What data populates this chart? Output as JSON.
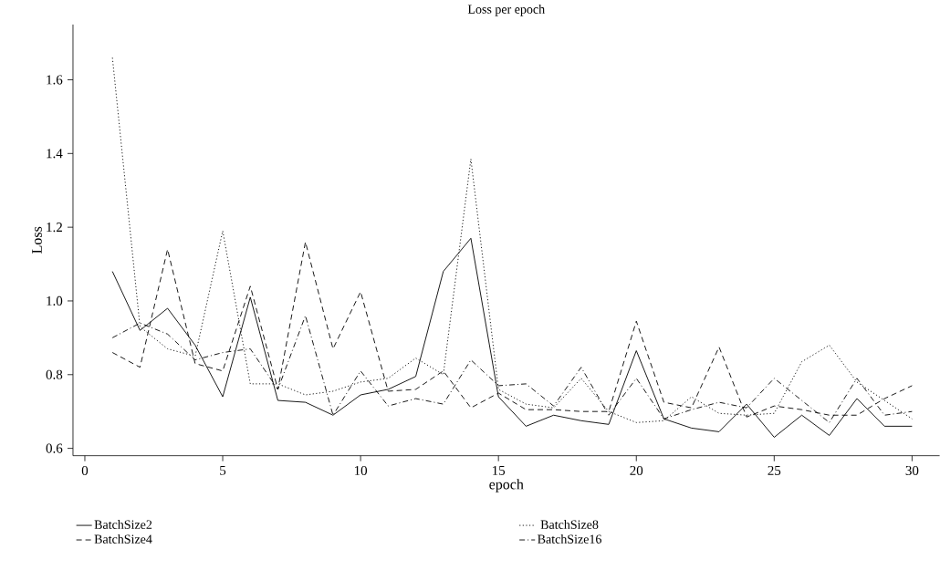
{
  "chart_data": {
    "type": "line",
    "title": "Loss per epoch",
    "xlabel": "epoch",
    "ylabel": "Loss",
    "x": [
      1,
      2,
      3,
      4,
      5,
      6,
      7,
      8,
      9,
      10,
      11,
      12,
      13,
      14,
      15,
      16,
      17,
      18,
      19,
      20,
      21,
      22,
      23,
      24,
      25,
      26,
      27,
      28,
      29,
      30
    ],
    "series": [
      {
        "name": "BatchSize2",
        "color": "#000000",
        "line_style": "solid",
        "values": [
          1.08,
          0.92,
          0.98,
          0.88,
          0.74,
          1.01,
          0.73,
          0.725,
          0.69,
          0.745,
          0.76,
          0.795,
          1.08,
          1.17,
          0.74,
          0.66,
          0.69,
          0.675,
          0.665,
          0.865,
          0.68,
          0.655,
          0.645,
          0.72,
          0.63,
          0.69,
          0.635,
          0.735,
          0.66,
          0.66
        ]
      },
      {
        "name": "BatchSize4",
        "color": "#000000",
        "line_style": "dashed",
        "values": [
          0.86,
          0.82,
          1.14,
          0.83,
          0.81,
          1.04,
          0.76,
          1.16,
          0.87,
          1.025,
          0.755,
          0.76,
          0.81,
          0.71,
          0.75,
          0.705,
          0.705,
          0.7,
          0.7,
          0.945,
          0.725,
          0.71,
          0.875,
          0.685,
          0.715,
          0.705,
          0.69,
          0.69,
          0.735,
          0.77
        ]
      },
      {
        "name": "BatchSize8",
        "color": "#000000",
        "line_style": "dotted",
        "values": [
          1.66,
          0.93,
          0.87,
          0.85,
          1.19,
          0.775,
          0.775,
          0.745,
          0.755,
          0.78,
          0.79,
          0.845,
          0.8,
          1.385,
          0.76,
          0.72,
          0.71,
          0.79,
          0.7,
          0.67,
          0.675,
          0.74,
          0.695,
          0.69,
          0.695,
          0.835,
          0.88,
          0.78,
          0.73,
          0.68
        ]
      },
      {
        "name": "BatchSize16",
        "color": "#000000",
        "line_style": "dashdot",
        "values": [
          0.9,
          0.94,
          0.91,
          0.84,
          0.86,
          0.87,
          0.76,
          0.96,
          0.69,
          0.81,
          0.715,
          0.735,
          0.72,
          0.84,
          0.77,
          0.775,
          0.715,
          0.82,
          0.69,
          0.79,
          0.68,
          0.705,
          0.725,
          0.71,
          0.79,
          0.73,
          0.67,
          0.79,
          0.69,
          0.7
        ]
      }
    ],
    "xlim": [
      -0.43,
      31.0
    ],
    "ylim": [
      0.58,
      1.75
    ],
    "xticks": [
      0,
      5,
      10,
      15,
      20,
      25,
      30
    ],
    "yticks": [
      0.6,
      0.8,
      {
        "value": 1.0,
        "label": "1.0"
      },
      1.2,
      1.4,
      1.6
    ],
    "grid": false,
    "legend": "bottom",
    "marker": "none"
  }
}
